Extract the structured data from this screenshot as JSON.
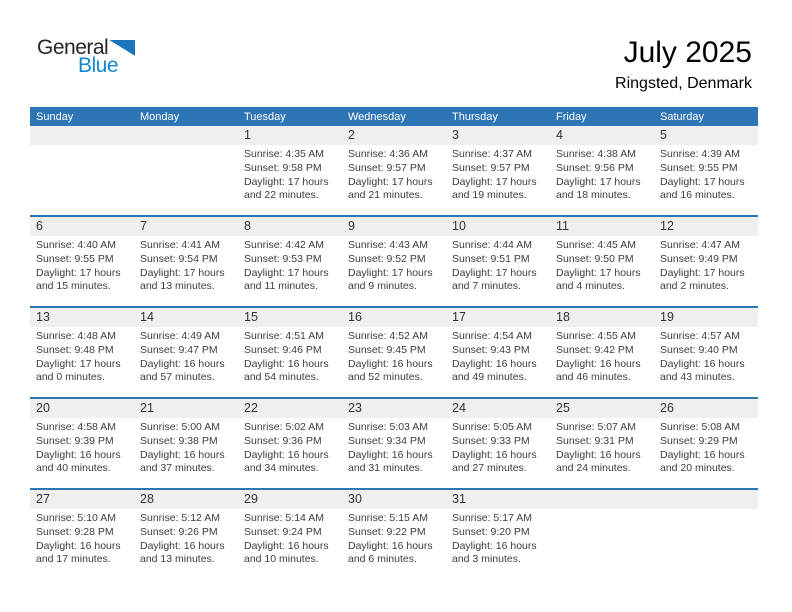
{
  "logo": {
    "text_general": "General",
    "text_blue": "Blue",
    "triangle_icon": "blue-triangle"
  },
  "title": "July 2025",
  "location": "Ringsted, Denmark",
  "colors": {
    "header_blue": "#2E75B6",
    "stripe_gray": "#EFEFEF",
    "logo_text_dark": "#262626",
    "logo_blue": "#1787D3",
    "logo_triangle_blue": "#1C75BC",
    "body_text": "#3D3D3D"
  },
  "calendar": {
    "weekdays": [
      "Sunday",
      "Monday",
      "Tuesday",
      "Wednesday",
      "Thursday",
      "Friday",
      "Saturday"
    ],
    "weeks": [
      [
        {
          "day": "",
          "sunrise": "",
          "sunset": "",
          "daylight1": "",
          "daylight2": ""
        },
        {
          "day": "",
          "sunrise": "",
          "sunset": "",
          "daylight1": "",
          "daylight2": ""
        },
        {
          "day": "1",
          "sunrise": "Sunrise: 4:35 AM",
          "sunset": "Sunset: 9:58 PM",
          "daylight1": "Daylight: 17 hours",
          "daylight2": "and 22 minutes."
        },
        {
          "day": "2",
          "sunrise": "Sunrise: 4:36 AM",
          "sunset": "Sunset: 9:57 PM",
          "daylight1": "Daylight: 17 hours",
          "daylight2": "and 21 minutes."
        },
        {
          "day": "3",
          "sunrise": "Sunrise: 4:37 AM",
          "sunset": "Sunset: 9:57 PM",
          "daylight1": "Daylight: 17 hours",
          "daylight2": "and 19 minutes."
        },
        {
          "day": "4",
          "sunrise": "Sunrise: 4:38 AM",
          "sunset": "Sunset: 9:56 PM",
          "daylight1": "Daylight: 17 hours",
          "daylight2": "and 18 minutes."
        },
        {
          "day": "5",
          "sunrise": "Sunrise: 4:39 AM",
          "sunset": "Sunset: 9:55 PM",
          "daylight1": "Daylight: 17 hours",
          "daylight2": "and 16 minutes."
        }
      ],
      [
        {
          "day": "6",
          "sunrise": "Sunrise: 4:40 AM",
          "sunset": "Sunset: 9:55 PM",
          "daylight1": "Daylight: 17 hours",
          "daylight2": "and 15 minutes."
        },
        {
          "day": "7",
          "sunrise": "Sunrise: 4:41 AM",
          "sunset": "Sunset: 9:54 PM",
          "daylight1": "Daylight: 17 hours",
          "daylight2": "and 13 minutes."
        },
        {
          "day": "8",
          "sunrise": "Sunrise: 4:42 AM",
          "sunset": "Sunset: 9:53 PM",
          "daylight1": "Daylight: 17 hours",
          "daylight2": "and 11 minutes."
        },
        {
          "day": "9",
          "sunrise": "Sunrise: 4:43 AM",
          "sunset": "Sunset: 9:52 PM",
          "daylight1": "Daylight: 17 hours",
          "daylight2": "and 9 minutes."
        },
        {
          "day": "10",
          "sunrise": "Sunrise: 4:44 AM",
          "sunset": "Sunset: 9:51 PM",
          "daylight1": "Daylight: 17 hours",
          "daylight2": "and 7 minutes."
        },
        {
          "day": "11",
          "sunrise": "Sunrise: 4:45 AM",
          "sunset": "Sunset: 9:50 PM",
          "daylight1": "Daylight: 17 hours",
          "daylight2": "and 4 minutes."
        },
        {
          "day": "12",
          "sunrise": "Sunrise: 4:47 AM",
          "sunset": "Sunset: 9:49 PM",
          "daylight1": "Daylight: 17 hours",
          "daylight2": "and 2 minutes."
        }
      ],
      [
        {
          "day": "13",
          "sunrise": "Sunrise: 4:48 AM",
          "sunset": "Sunset: 9:48 PM",
          "daylight1": "Daylight: 17 hours",
          "daylight2": "and 0 minutes."
        },
        {
          "day": "14",
          "sunrise": "Sunrise: 4:49 AM",
          "sunset": "Sunset: 9:47 PM",
          "daylight1": "Daylight: 16 hours",
          "daylight2": "and 57 minutes."
        },
        {
          "day": "15",
          "sunrise": "Sunrise: 4:51 AM",
          "sunset": "Sunset: 9:46 PM",
          "daylight1": "Daylight: 16 hours",
          "daylight2": "and 54 minutes."
        },
        {
          "day": "16",
          "sunrise": "Sunrise: 4:52 AM",
          "sunset": "Sunset: 9:45 PM",
          "daylight1": "Daylight: 16 hours",
          "daylight2": "and 52 minutes."
        },
        {
          "day": "17",
          "sunrise": "Sunrise: 4:54 AM",
          "sunset": "Sunset: 9:43 PM",
          "daylight1": "Daylight: 16 hours",
          "daylight2": "and 49 minutes."
        },
        {
          "day": "18",
          "sunrise": "Sunrise: 4:55 AM",
          "sunset": "Sunset: 9:42 PM",
          "daylight1": "Daylight: 16 hours",
          "daylight2": "and 46 minutes."
        },
        {
          "day": "19",
          "sunrise": "Sunrise: 4:57 AM",
          "sunset": "Sunset: 9:40 PM",
          "daylight1": "Daylight: 16 hours",
          "daylight2": "and 43 minutes."
        }
      ],
      [
        {
          "day": "20",
          "sunrise": "Sunrise: 4:58 AM",
          "sunset": "Sunset: 9:39 PM",
          "daylight1": "Daylight: 16 hours",
          "daylight2": "and 40 minutes."
        },
        {
          "day": "21",
          "sunrise": "Sunrise: 5:00 AM",
          "sunset": "Sunset: 9:38 PM",
          "daylight1": "Daylight: 16 hours",
          "daylight2": "and 37 minutes."
        },
        {
          "day": "22",
          "sunrise": "Sunrise: 5:02 AM",
          "sunset": "Sunset: 9:36 PM",
          "daylight1": "Daylight: 16 hours",
          "daylight2": "and 34 minutes."
        },
        {
          "day": "23",
          "sunrise": "Sunrise: 5:03 AM",
          "sunset": "Sunset: 9:34 PM",
          "daylight1": "Daylight: 16 hours",
          "daylight2": "and 31 minutes."
        },
        {
          "day": "24",
          "sunrise": "Sunrise: 5:05 AM",
          "sunset": "Sunset: 9:33 PM",
          "daylight1": "Daylight: 16 hours",
          "daylight2": "and 27 minutes."
        },
        {
          "day": "25",
          "sunrise": "Sunrise: 5:07 AM",
          "sunset": "Sunset: 9:31 PM",
          "daylight1": "Daylight: 16 hours",
          "daylight2": "and 24 minutes."
        },
        {
          "day": "26",
          "sunrise": "Sunrise: 5:08 AM",
          "sunset": "Sunset: 9:29 PM",
          "daylight1": "Daylight: 16 hours",
          "daylight2": "and 20 minutes."
        }
      ],
      [
        {
          "day": "27",
          "sunrise": "Sunrise: 5:10 AM",
          "sunset": "Sunset: 9:28 PM",
          "daylight1": "Daylight: 16 hours",
          "daylight2": "and 17 minutes."
        },
        {
          "day": "28",
          "sunrise": "Sunrise: 5:12 AM",
          "sunset": "Sunset: 9:26 PM",
          "daylight1": "Daylight: 16 hours",
          "daylight2": "and 13 minutes."
        },
        {
          "day": "29",
          "sunrise": "Sunrise: 5:14 AM",
          "sunset": "Sunset: 9:24 PM",
          "daylight1": "Daylight: 16 hours",
          "daylight2": "and 10 minutes."
        },
        {
          "day": "30",
          "sunrise": "Sunrise: 5:15 AM",
          "sunset": "Sunset: 9:22 PM",
          "daylight1": "Daylight: 16 hours",
          "daylight2": "and 6 minutes."
        },
        {
          "day": "31",
          "sunrise": "Sunrise: 5:17 AM",
          "sunset": "Sunset: 9:20 PM",
          "daylight1": "Daylight: 16 hours",
          "daylight2": "and 3 minutes."
        },
        {
          "day": "",
          "sunrise": "",
          "sunset": "",
          "daylight1": "",
          "daylight2": ""
        },
        {
          "day": "",
          "sunrise": "",
          "sunset": "",
          "daylight1": "",
          "daylight2": ""
        }
      ]
    ]
  }
}
